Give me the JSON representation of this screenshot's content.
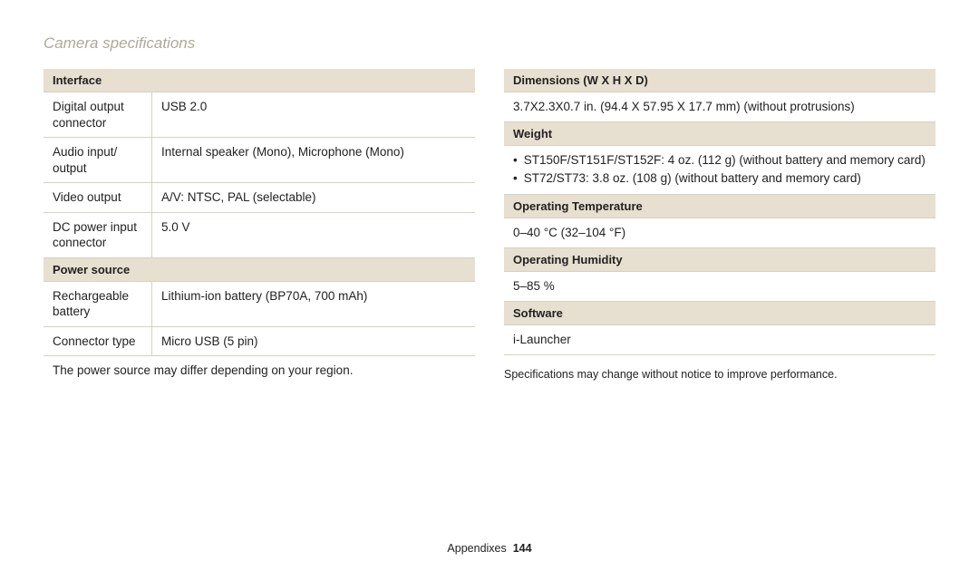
{
  "page_title": "Camera specifications",
  "left": {
    "sec1_header": "Interface",
    "rows1": [
      {
        "label": "Digital output connector",
        "value": "USB 2.0"
      },
      {
        "label": "Audio input/ output",
        "value": "Internal speaker (Mono), Microphone (Mono)"
      },
      {
        "label": "Video output",
        "value": "A/V: NTSC, PAL (selectable)"
      },
      {
        "label": "DC power input connector",
        "value": "5.0 V"
      }
    ],
    "sec2_header": "Power source",
    "rows2": [
      {
        "label": "Rechargeable battery",
        "value": "Lithium-ion battery (BP70A, 700 mAh)"
      },
      {
        "label": "Connector type",
        "value": "Micro USB (5 pin)"
      }
    ],
    "note_row": "The power source may differ depending on your region."
  },
  "right": {
    "sec1_header": "Dimensions (W X H X D)",
    "sec1_value": "3.7X2.3X0.7 in. (94.4 X 57.95 X 17.7 mm) (without protrusions)",
    "sec2_header": "Weight",
    "sec2_bullets": [
      "ST150F/ST151F/ST152F: 4 oz. (112 g) (without battery and memory card)",
      "ST72/ST73: 3.8 oz. (108 g) (without battery and memory card)"
    ],
    "sec3_header": "Operating Temperature",
    "sec3_value": "0–40 °C (32–104 °F)",
    "sec4_header": "Operating Humidity",
    "sec4_value": "5–85 %",
    "sec5_header": "Software",
    "sec5_value": "i-Launcher",
    "footnote": "Specifications may change without notice to improve performance."
  },
  "footer_label": "Appendixes",
  "footer_page": "144"
}
